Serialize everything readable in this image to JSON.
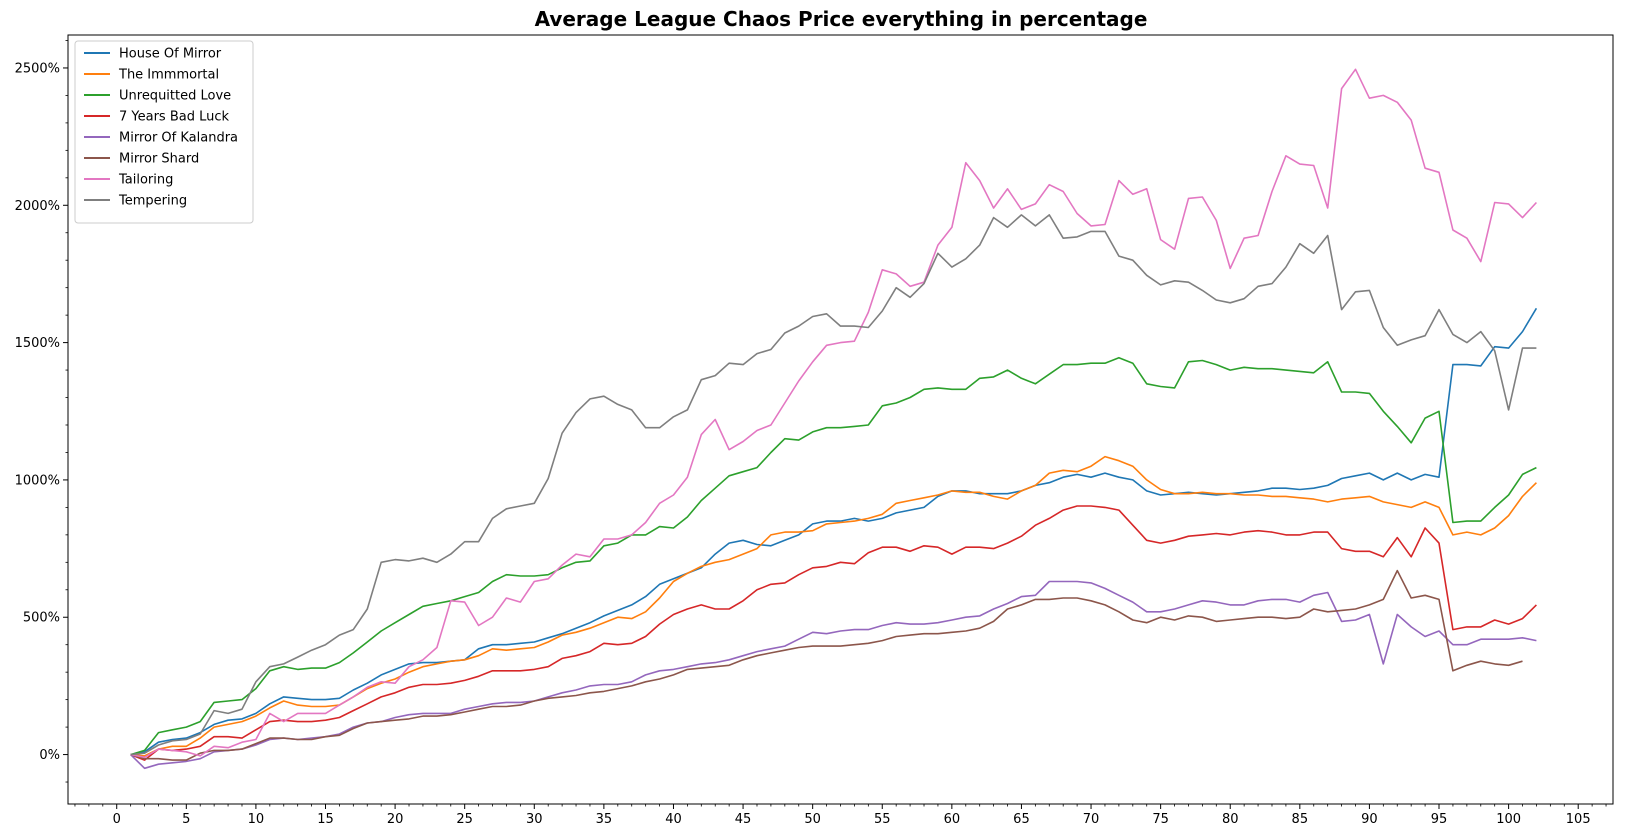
{
  "chart_data": {
    "type": "line",
    "title": "Average League Chaos Price everything in percentage",
    "xlabel": "",
    "ylabel": "",
    "xlim": [
      -3.5,
      107.5
    ],
    "ylim": [
      -180,
      2620
    ],
    "x_ticks": [
      0,
      5,
      10,
      15,
      20,
      25,
      30,
      35,
      40,
      45,
      50,
      55,
      60,
      65,
      70,
      75,
      80,
      85,
      90,
      95,
      100,
      105
    ],
    "x_tick_labels": [
      "0",
      "5",
      "10",
      "15",
      "20",
      "25",
      "30",
      "35",
      "40",
      "45",
      "50",
      "55",
      "60",
      "65",
      "70",
      "75",
      "80",
      "85",
      "90",
      "95",
      "100",
      "105"
    ],
    "y_ticks": [
      0,
      500,
      1000,
      1500,
      2000,
      2500
    ],
    "y_tick_labels": [
      "0%",
      "500%",
      "1000%",
      "1500%",
      "2000%",
      "2500%"
    ],
    "grid": false,
    "legend_position": "top-left",
    "series": [
      {
        "name": "House Of Mirror",
        "color": "#1f77b4",
        "start_x": 1,
        "values": [
          0,
          10,
          45,
          55,
          60,
          80,
          110,
          125,
          130,
          150,
          185,
          210,
          205,
          200,
          200,
          205,
          235,
          260,
          290,
          310,
          330,
          335,
          335,
          340,
          345,
          385,
          400,
          400,
          405,
          410,
          425,
          440,
          460,
          480,
          505,
          525,
          545,
          575,
          620,
          640,
          660,
          680,
          730,
          770,
          780,
          765,
          760,
          780,
          800,
          840,
          850,
          850,
          860,
          850,
          860,
          880,
          890,
          900,
          940,
          960,
          960,
          950,
          950,
          950,
          960,
          980,
          990,
          1010,
          1020,
          1010,
          1025,
          1010,
          1000,
          960,
          945,
          950,
          955,
          950,
          945,
          950,
          955,
          960,
          970,
          970,
          965,
          970,
          980,
          1005,
          1015,
          1025,
          1000,
          1025,
          1000,
          1020,
          1010,
          1420,
          1420,
          1415,
          1485,
          1480,
          1540,
          1625
        ]
      },
      {
        "name": "The Immmortal",
        "color": "#ff7f0e",
        "start_x": 1,
        "values": [
          0,
          -5,
          20,
          30,
          30,
          60,
          100,
          110,
          120,
          140,
          170,
          195,
          180,
          175,
          175,
          180,
          210,
          240,
          260,
          275,
          300,
          320,
          330,
          340,
          345,
          360,
          385,
          380,
          385,
          390,
          410,
          435,
          445,
          460,
          480,
          500,
          495,
          520,
          570,
          630,
          660,
          685,
          700,
          710,
          730,
          750,
          800,
          810,
          810,
          815,
          840,
          845,
          850,
          860,
          875,
          915,
          925,
          935,
          945,
          960,
          955,
          955,
          940,
          930,
          960,
          980,
          1025,
          1035,
          1030,
          1050,
          1085,
          1070,
          1050,
          1000,
          965,
          950,
          950,
          955,
          950,
          950,
          945,
          945,
          940,
          940,
          935,
          930,
          920,
          930,
          935,
          940,
          920,
          910,
          900,
          920,
          900,
          800,
          810,
          800,
          825,
          870,
          940,
          990
        ]
      },
      {
        "name": "Unrequitted Love",
        "color": "#2ca02c",
        "start_x": 1,
        "values": [
          0,
          15,
          80,
          90,
          100,
          120,
          190,
          195,
          200,
          240,
          305,
          320,
          310,
          315,
          315,
          335,
          370,
          410,
          450,
          480,
          510,
          540,
          550,
          560,
          575,
          590,
          630,
          655,
          650,
          650,
          655,
          680,
          700,
          705,
          760,
          770,
          800,
          800,
          830,
          825,
          865,
          925,
          970,
          1015,
          1030,
          1045,
          1100,
          1150,
          1145,
          1175,
          1190,
          1190,
          1195,
          1200,
          1270,
          1280,
          1300,
          1330,
          1335,
          1330,
          1330,
          1370,
          1375,
          1400,
          1370,
          1350,
          1385,
          1420,
          1420,
          1425,
          1425,
          1445,
          1425,
          1350,
          1340,
          1335,
          1430,
          1435,
          1420,
          1400,
          1410,
          1405,
          1405,
          1400,
          1395,
          1390,
          1430,
          1320,
          1320,
          1315,
          1250,
          1195,
          1135,
          1225,
          1250,
          845,
          850,
          850,
          900,
          945,
          1020,
          1045
        ]
      },
      {
        "name": "7 Years Bad Luck",
        "color": "#d62728",
        "start_x": 1,
        "values": [
          0,
          -20,
          20,
          15,
          20,
          30,
          65,
          65,
          60,
          90,
          120,
          125,
          120,
          120,
          125,
          135,
          160,
          185,
          210,
          225,
          245,
          255,
          255,
          260,
          270,
          285,
          305,
          305,
          305,
          310,
          320,
          350,
          360,
          375,
          405,
          400,
          405,
          430,
          475,
          510,
          530,
          545,
          530,
          530,
          560,
          600,
          620,
          625,
          655,
          680,
          685,
          700,
          695,
          735,
          755,
          755,
          740,
          760,
          755,
          730,
          755,
          755,
          750,
          770,
          795,
          835,
          860,
          890,
          905,
          905,
          900,
          890,
          835,
          780,
          770,
          780,
          795,
          800,
          805,
          800,
          810,
          815,
          810,
          800,
          800,
          810,
          810,
          750,
          740,
          740,
          720,
          790,
          720,
          825,
          770,
          455,
          465,
          465,
          490,
          475,
          495,
          545
        ]
      },
      {
        "name": "Mirror Of Kalandra",
        "color": "#9467bd",
        "start_x": 1,
        "values": [
          0,
          -50,
          -35,
          -30,
          -25,
          -15,
          10,
          15,
          20,
          35,
          55,
          60,
          55,
          60,
          65,
          75,
          100,
          115,
          120,
          135,
          145,
          150,
          150,
          150,
          165,
          175,
          185,
          190,
          190,
          195,
          210,
          225,
          235,
          250,
          255,
          255,
          265,
          290,
          305,
          310,
          320,
          330,
          335,
          345,
          360,
          375,
          385,
          395,
          420,
          445,
          440,
          450,
          455,
          455,
          470,
          480,
          475,
          475,
          480,
          490,
          500,
          505,
          530,
          550,
          575,
          580,
          630,
          630,
          630,
          625,
          605,
          580,
          555,
          520,
          520,
          530,
          545,
          560,
          555,
          545,
          545,
          560,
          565,
          565,
          555,
          580,
          590,
          485,
          490,
          510,
          330,
          510,
          465,
          430,
          450,
          400,
          400,
          420,
          420,
          420,
          425,
          415
        ]
      },
      {
        "name": "Mirror Shard",
        "color": "#8c564b",
        "start_x": 1,
        "values": [
          0,
          -15,
          -15,
          -20,
          -20,
          5,
          15,
          15,
          20,
          40,
          60,
          60,
          55,
          55,
          65,
          70,
          95,
          115,
          120,
          125,
          130,
          140,
          140,
          145,
          155,
          165,
          175,
          175,
          180,
          195,
          205,
          210,
          215,
          225,
          230,
          240,
          250,
          265,
          275,
          290,
          310,
          315,
          320,
          325,
          345,
          360,
          370,
          380,
          390,
          395,
          395,
          395,
          400,
          405,
          415,
          430,
          435,
          440,
          440,
          445,
          450,
          460,
          485,
          530,
          545,
          565,
          565,
          570,
          570,
          560,
          545,
          520,
          490,
          480,
          500,
          490,
          505,
          500,
          485,
          490,
          495,
          500,
          500,
          495,
          500,
          530,
          520,
          525,
          530,
          545,
          565,
          670,
          570,
          580,
          565,
          305,
          325,
          340,
          330,
          325,
          340
        ]
      },
      {
        "name": "Tailoring",
        "color": "#e377c2",
        "start_x": 1,
        "values": [
          0,
          -10,
          20,
          15,
          10,
          -5,
          30,
          25,
          45,
          55,
          150,
          120,
          150,
          150,
          150,
          180,
          210,
          245,
          265,
          260,
          320,
          345,
          390,
          560,
          555,
          470,
          500,
          570,
          555,
          630,
          640,
          690,
          730,
          720,
          785,
          785,
          800,
          845,
          915,
          945,
          1010,
          1165,
          1220,
          1110,
          1140,
          1180,
          1200,
          1280,
          1360,
          1430,
          1490,
          1500,
          1505,
          1610,
          1765,
          1750,
          1705,
          1720,
          1855,
          1920,
          2155,
          2090,
          1990,
          2060,
          1985,
          2005,
          2075,
          2050,
          1970,
          1925,
          1930,
          2090,
          2040,
          2060,
          1875,
          1840,
          2025,
          2030,
          1945,
          1770,
          1880,
          1890,
          2050,
          2180,
          2150,
          2145,
          1990,
          2425,
          2495,
          2390,
          2400,
          2375,
          2310,
          2135,
          2120,
          1910,
          1880,
          1795,
          2010,
          2005,
          1955,
          2010
        ]
      },
      {
        "name": "Tempering",
        "color": "#7f7f7f",
        "start_x": 1,
        "values": [
          0,
          5,
          35,
          50,
          55,
          75,
          160,
          150,
          165,
          265,
          320,
          330,
          355,
          380,
          400,
          435,
          455,
          530,
          700,
          710,
          705,
          715,
          700,
          730,
          775,
          775,
          860,
          895,
          905,
          915,
          1005,
          1170,
          1245,
          1295,
          1305,
          1275,
          1255,
          1190,
          1190,
          1230,
          1255,
          1365,
          1380,
          1425,
          1420,
          1460,
          1475,
          1535,
          1560,
          1595,
          1605,
          1560,
          1560,
          1555,
          1615,
          1700,
          1665,
          1715,
          1825,
          1775,
          1805,
          1855,
          1955,
          1920,
          1965,
          1925,
          1965,
          1880,
          1885,
          1905,
          1905,
          1815,
          1800,
          1745,
          1710,
          1725,
          1720,
          1690,
          1655,
          1645,
          1660,
          1705,
          1715,
          1775,
          1860,
          1825,
          1890,
          1620,
          1685,
          1690,
          1555,
          1490,
          1510,
          1525,
          1620,
          1530,
          1500,
          1540,
          1470,
          1255,
          1480,
          1480
        ]
      }
    ]
  }
}
